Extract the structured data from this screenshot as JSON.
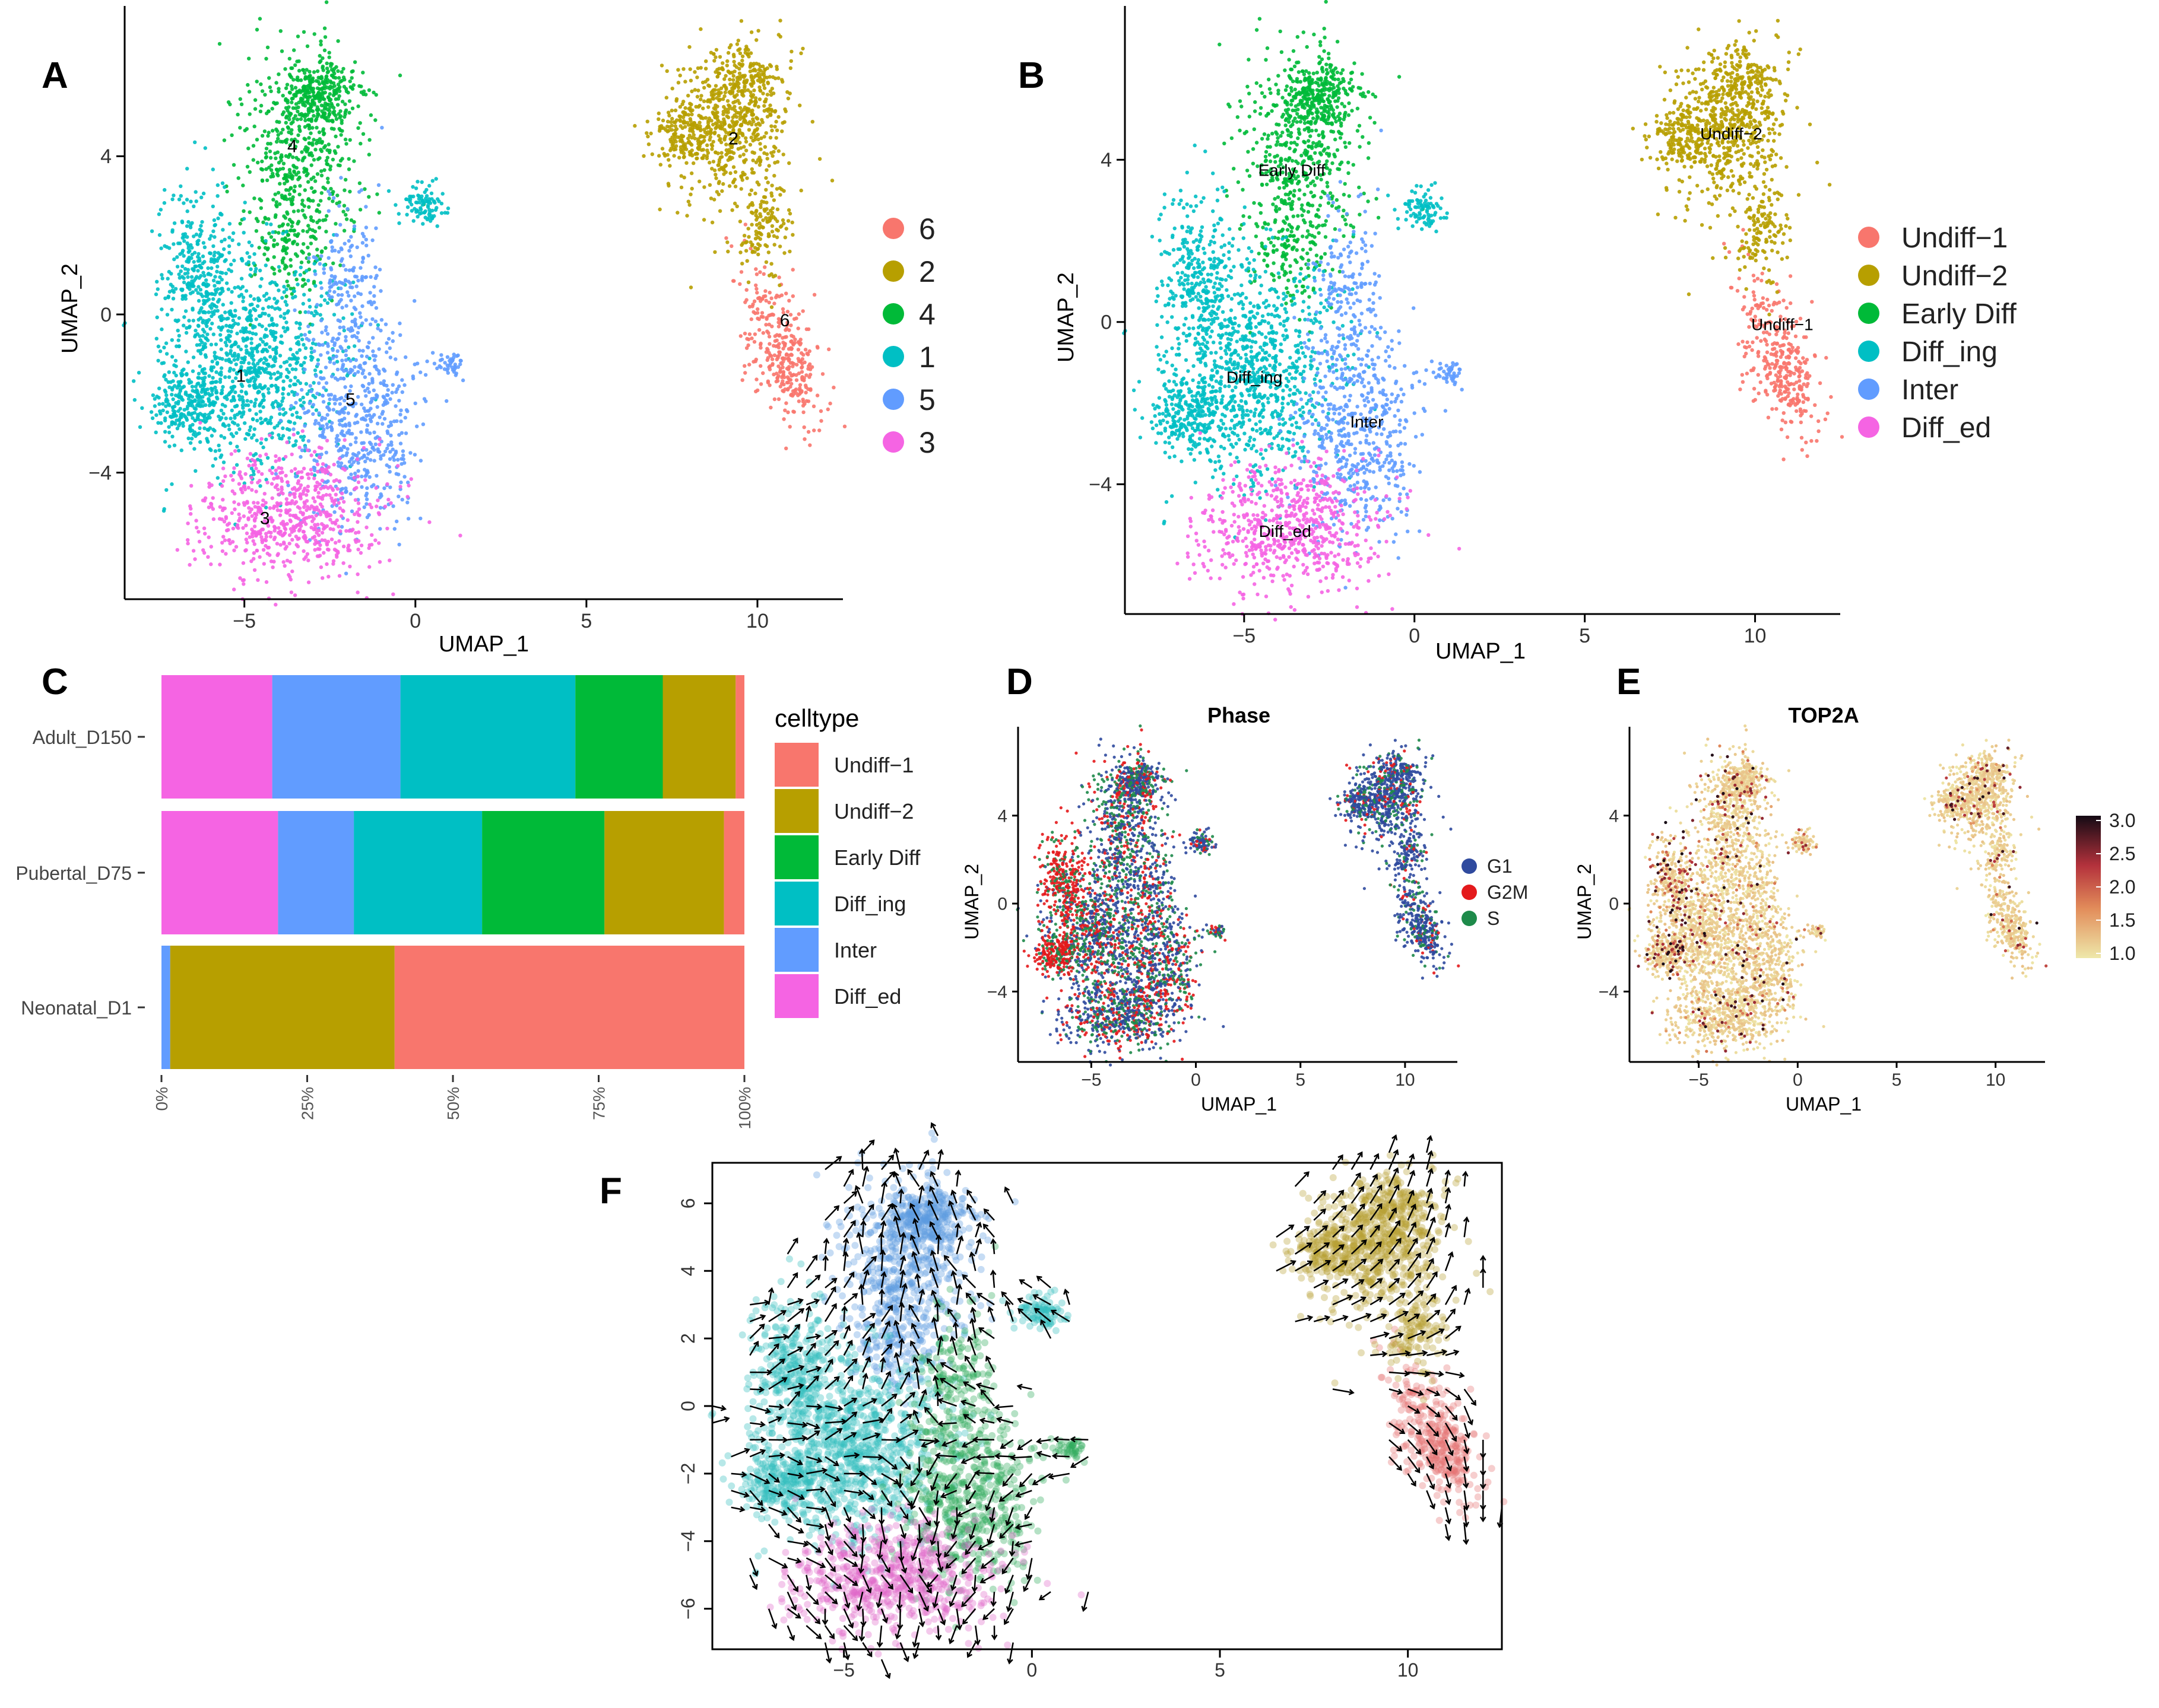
{
  "chart_data": [
    {
      "panel": "A",
      "type": "scatter",
      "title": "",
      "xlabel": "UMAP_1",
      "ylabel": "UMAP_2",
      "xlim": [
        -8.5,
        12.5
      ],
      "ylim": [
        -7.2,
        7.5
      ],
      "x_ticks": [
        -5,
        0,
        5,
        10
      ],
      "y_ticks": [
        -4,
        0,
        4
      ],
      "legend_title": "",
      "legend": [
        {
          "label": "6",
          "color": "#F8766D"
        },
        {
          "label": "2",
          "color": "#B79F00"
        },
        {
          "label": "4",
          "color": "#00BA38"
        },
        {
          "label": "1",
          "color": "#00BFC4"
        },
        {
          "label": "5",
          "color": "#619CFF"
        },
        {
          "label": "3",
          "color": "#F564E3"
        }
      ],
      "cluster_labels": [
        {
          "text": "4",
          "x": -3.6,
          "y": 4.1
        },
        {
          "text": "2",
          "x": 9.3,
          "y": 4.3
        },
        {
          "text": "6",
          "x": 10.8,
          "y": -0.3
        },
        {
          "text": "1",
          "x": -5.1,
          "y": -1.7
        },
        {
          "text": "5",
          "x": -1.9,
          "y": -2.3
        },
        {
          "text": "3",
          "x": -4.4,
          "y": -5.3
        }
      ]
    },
    {
      "panel": "B",
      "type": "scatter",
      "title": "",
      "xlabel": "UMAP_1",
      "ylabel": "UMAP_2",
      "xlim": [
        -8.5,
        12.5
      ],
      "ylim": [
        -7.2,
        7.5
      ],
      "x_ticks": [
        -5,
        0,
        5,
        10
      ],
      "y_ticks": [
        -4,
        0,
        4
      ],
      "legend_title": "",
      "legend": [
        {
          "label": "Undiff−1",
          "color": "#F8766D"
        },
        {
          "label": "Undiff−2",
          "color": "#B79F00"
        },
        {
          "label": "Early Diff",
          "color": "#00BA38"
        },
        {
          "label": "Diff_ing",
          "color": "#00BFC4"
        },
        {
          "label": "Inter",
          "color": "#619CFF"
        },
        {
          "label": "Diff_ed",
          "color": "#F564E3"
        }
      ],
      "cluster_labels": [
        {
          "text": "Early Diff",
          "x": -3.6,
          "y": 3.6
        },
        {
          "text": "Undiff−2",
          "x": 9.3,
          "y": 4.5
        },
        {
          "text": "Undiff−1",
          "x": 10.8,
          "y": -0.2
        },
        {
          "text": "Diff_ing",
          "x": -4.7,
          "y": -1.5
        },
        {
          "text": "Inter",
          "x": -1.4,
          "y": -2.6
        },
        {
          "text": "Diff_ed",
          "x": -3.8,
          "y": -5.3
        }
      ]
    },
    {
      "panel": "C",
      "type": "bar",
      "orientation": "horizontal",
      "stacked": true,
      "title": "",
      "xlabel": "",
      "ylabel": "",
      "categories": [
        "Adult_D150",
        "Pubertal_D75",
        "Neonatal_D1"
      ],
      "x_ticks": [
        "0%",
        "25%",
        "50%",
        "75%",
        "100%"
      ],
      "legend_title": "celltype",
      "series": [
        {
          "name": "Diff_ed",
          "color": "#F564E3",
          "values": [
            19,
            20,
            0
          ]
        },
        {
          "name": "Inter",
          "color": "#619CFF",
          "values": [
            22,
            13,
            1.5
          ]
        },
        {
          "name": "Diff_ing",
          "color": "#00BFC4",
          "values": [
            30,
            22,
            0
          ]
        },
        {
          "name": "Early Diff",
          "color": "#00BA38",
          "values": [
            15,
            21,
            0
          ]
        },
        {
          "name": "Undiff−2",
          "color": "#B79F00",
          "values": [
            12.5,
            20.5,
            38.5
          ]
        },
        {
          "name": "Undiff−1",
          "color": "#F8766D",
          "values": [
            1.5,
            3.5,
            60
          ]
        }
      ],
      "legend": [
        {
          "label": "Undiff−1",
          "color": "#F8766D"
        },
        {
          "label": "Undiff−2",
          "color": "#B79F00"
        },
        {
          "label": "Early Diff",
          "color": "#00BA38"
        },
        {
          "label": "Diff_ing",
          "color": "#00BFC4"
        },
        {
          "label": "Inter",
          "color": "#619CFF"
        },
        {
          "label": "Diff_ed",
          "color": "#F564E3"
        }
      ]
    },
    {
      "panel": "D",
      "type": "scatter",
      "title": "Phase",
      "xlabel": "UMAP_1",
      "ylabel": "UMAP_2",
      "xlim": [
        -8.5,
        12.5
      ],
      "ylim": [
        -7.2,
        7.5
      ],
      "x_ticks": [
        -5,
        0,
        5,
        10
      ],
      "y_ticks": [
        -4,
        0,
        4
      ],
      "legend": [
        {
          "label": "G1",
          "color": "#2F4A9E"
        },
        {
          "label": "G2M",
          "color": "#E41A1C"
        },
        {
          "label": "S",
          "color": "#1E8A4A"
        }
      ]
    },
    {
      "panel": "E",
      "type": "scatter",
      "title": "TOP2A",
      "xlabel": "UMAP_1",
      "ylabel": "UMAP_2",
      "xlim": [
        -8.5,
        12.5
      ],
      "ylim": [
        -7.2,
        7.5
      ],
      "x_ticks": [
        -5,
        0,
        5,
        10
      ],
      "y_ticks": [
        -4,
        0,
        4
      ],
      "colorbar_ticks": [
        "3.0",
        "2.5",
        "2.0",
        "1.5",
        "1.0"
      ],
      "colorbar_range": [
        1.0,
        3.0
      ]
    },
    {
      "panel": "F",
      "type": "scatter",
      "subtype": "velocity-stream",
      "title": "",
      "xlabel": "",
      "ylabel": "",
      "xlim": [
        -8.5,
        12.5
      ],
      "ylim": [
        -7.2,
        7.2
      ],
      "x_ticks": [
        -5,
        0,
        5,
        10
      ],
      "y_ticks": [
        6,
        4,
        2,
        0,
        -2,
        -4,
        -6
      ]
    }
  ],
  "panel_letters": {
    "A": "A",
    "B": "B",
    "C": "C",
    "D": "D",
    "E": "E",
    "F": "F"
  }
}
